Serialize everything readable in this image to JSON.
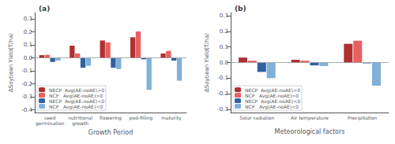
{
  "chart_data": [
    {
      "type": "bar",
      "title": "(a)",
      "x_label": "Growth Period",
      "y_label": "ΔSoybean Yield(T/ha)",
      "categories": [
        "seed\ngermination",
        "nutritional\ngrowth",
        "flowering",
        "pod-filling",
        "maturity"
      ],
      "series": [
        {
          "name": "NECP  Avg(AE-noAE)>0",
          "color": "#b03030",
          "values": [
            0.022,
            0.095,
            0.135,
            0.16,
            0.035
          ]
        },
        {
          "name": "NCP   Avg(AE-noAE)>0",
          "color": "#e86060",
          "values": [
            0.025,
            0.035,
            0.12,
            0.205,
            0.055
          ]
        },
        {
          "name": "NECP  Avg(AE-noAE)<0",
          "color": "#3060a0",
          "values": [
            -0.03,
            -0.075,
            -0.075,
            -0.01,
            -0.02
          ]
        },
        {
          "name": "NCP   Avg(AE-noAE)<0",
          "color": "#80b0d8",
          "values": [
            -0.02,
            -0.06,
            -0.085,
            -0.245,
            -0.175
          ]
        }
      ],
      "ylim": [
        -0.42,
        0.35
      ],
      "yticks": [
        -0.4,
        -0.3,
        -0.2,
        -0.1,
        {
          "value": 0,
          "label": "0.0"
        },
        0.1,
        0.2,
        0.3
      ],
      "grid": false,
      "legend": "lower left"
    },
    {
      "type": "bar",
      "title": "(b)",
      "x_label": "Meteorological factors",
      "y_label": "ΔSoybean Yield(T/ha)",
      "categories": [
        "Solar radiation",
        "Air temperature",
        "Precipitation"
      ],
      "series": [
        {
          "name": "NECP  Avg(AE-noAE)>0",
          "color": "#b03030",
          "values": [
            0.032,
            0.018,
            0.12
          ]
        },
        {
          "name": "NCP   Avg(AE-noAE)>0",
          "color": "#e86060",
          "values": [
            0.012,
            0.012,
            0.14
          ]
        },
        {
          "name": "NECP  Avg(AE-noAE)<0",
          "color": "#3060a0",
          "values": [
            -0.06,
            -0.018,
            -0.005
          ]
        },
        {
          "name": "NCP   Avg(AE-noAE)<0",
          "color": "#80b0d8",
          "values": [
            -0.1,
            -0.022,
            -0.148
          ]
        }
      ],
      "ylim": [
        -0.32,
        0.32
      ],
      "yticks": [
        -0.3,
        -0.2,
        -0.1,
        {
          "value": 0,
          "label": "0.0"
        },
        0.1,
        0.2,
        0.3
      ],
      "grid": false,
      "legend": "lower left"
    }
  ]
}
